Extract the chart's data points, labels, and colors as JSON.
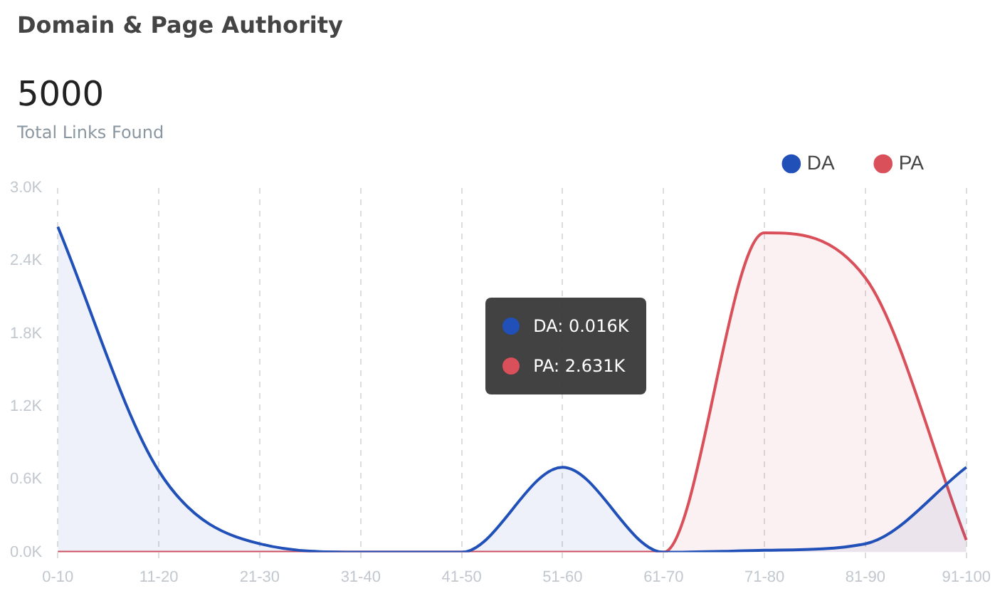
{
  "chart_data": {
    "type": "area",
    "title": "Domain & Page Authority",
    "subtitle": "5000",
    "annotations": [
      "Total Links Found",
      "DA: 0.016K",
      "PA: 2.631K"
    ],
    "categories": [
      "0-10",
      "11-20",
      "21-30",
      "31-40",
      "41-50",
      "51-60",
      "61-70",
      "71-80",
      "81-90",
      "91-100"
    ],
    "series": [
      {
        "name": "DA",
        "color": "#2050b8",
        "values": [
          2.68,
          0.67,
          0.07,
          0,
          0,
          0.7,
          0,
          0.016,
          0.07,
          0.7
        ]
      },
      {
        "name": "PA",
        "color": "#d9505a",
        "values": [
          0,
          0,
          0,
          0,
          0,
          0,
          0,
          2.631,
          2.26,
          0.1
        ]
      }
    ],
    "ylim": [
      0,
      3
    ],
    "yticks": [
      {
        "value": 0,
        "label": "0.0K"
      },
      {
        "value": 0.6,
        "label": "0.6K"
      },
      {
        "value": 1.2,
        "label": "1.2K"
      },
      {
        "value": 1.8,
        "label": "1.8K"
      },
      {
        "value": 2.4,
        "label": "2.4K"
      },
      {
        "value": 3,
        "label": "3.0K"
      }
    ],
    "grid": "x",
    "legend": "top right",
    "marker": "none",
    "line_style": "solid"
  }
}
